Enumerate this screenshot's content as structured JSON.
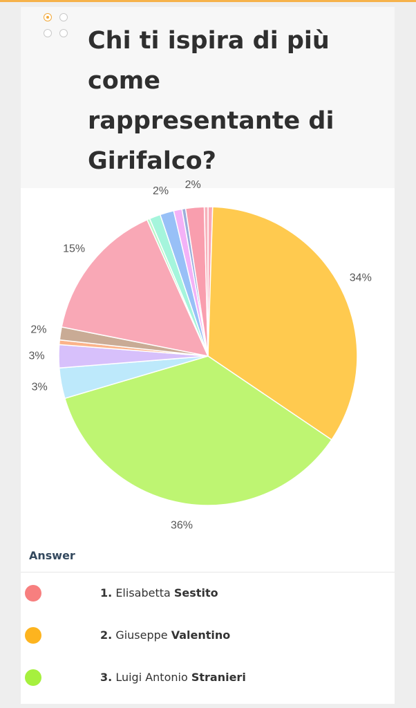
{
  "title": "Chi ti ispira di più come rappresentante di Girifalco?",
  "chart_data": {
    "type": "pie",
    "title": "Chi ti ispira di più come rappresentante di Girifalco?",
    "slices": [
      {
        "value": 0.5,
        "color": "#f9a8b6"
      },
      {
        "value": 34,
        "label": "34%",
        "color": "#ffca4f"
      },
      {
        "value": 36,
        "label": "36%",
        "color": "#bef572"
      },
      {
        "value": 3.3,
        "label": "3%",
        "color": "#bde9fb"
      },
      {
        "value": 2.5,
        "label": "3%",
        "color": "#d7c0fb"
      },
      {
        "value": 0.5,
        "color": "#fbb38a"
      },
      {
        "value": 1.4,
        "label": "2%",
        "color": "#c9ab95"
      },
      {
        "value": 15.2,
        "label": "15%",
        "color": "#f9a8b6"
      },
      {
        "value": 0.3,
        "color": "#b9f5c7"
      },
      {
        "value": 1.2,
        "color": "#a5f5dc"
      },
      {
        "value": 1.5,
        "label": "2%",
        "color": "#98c0f7"
      },
      {
        "value": 0.9,
        "color": "#f3b2f7"
      },
      {
        "value": 0.4,
        "color": "#9caedb"
      },
      {
        "value": 2.0,
        "label": "2%",
        "color": "#f99eae"
      },
      {
        "value": 0.4,
        "color": "#f7b1bb"
      }
    ]
  },
  "legend": {
    "heading": "Answer",
    "items": [
      {
        "num": "1.",
        "first": "Elisabetta",
        "last": "Sestito",
        "color": "#f77f7f"
      },
      {
        "num": "2.",
        "first": "Giuseppe",
        "last": "Valentino",
        "color": "#fdb41f"
      },
      {
        "num": "3.",
        "first": "Luigi Antonio",
        "last": "Stranieri",
        "color": "#a6f03e"
      }
    ]
  }
}
